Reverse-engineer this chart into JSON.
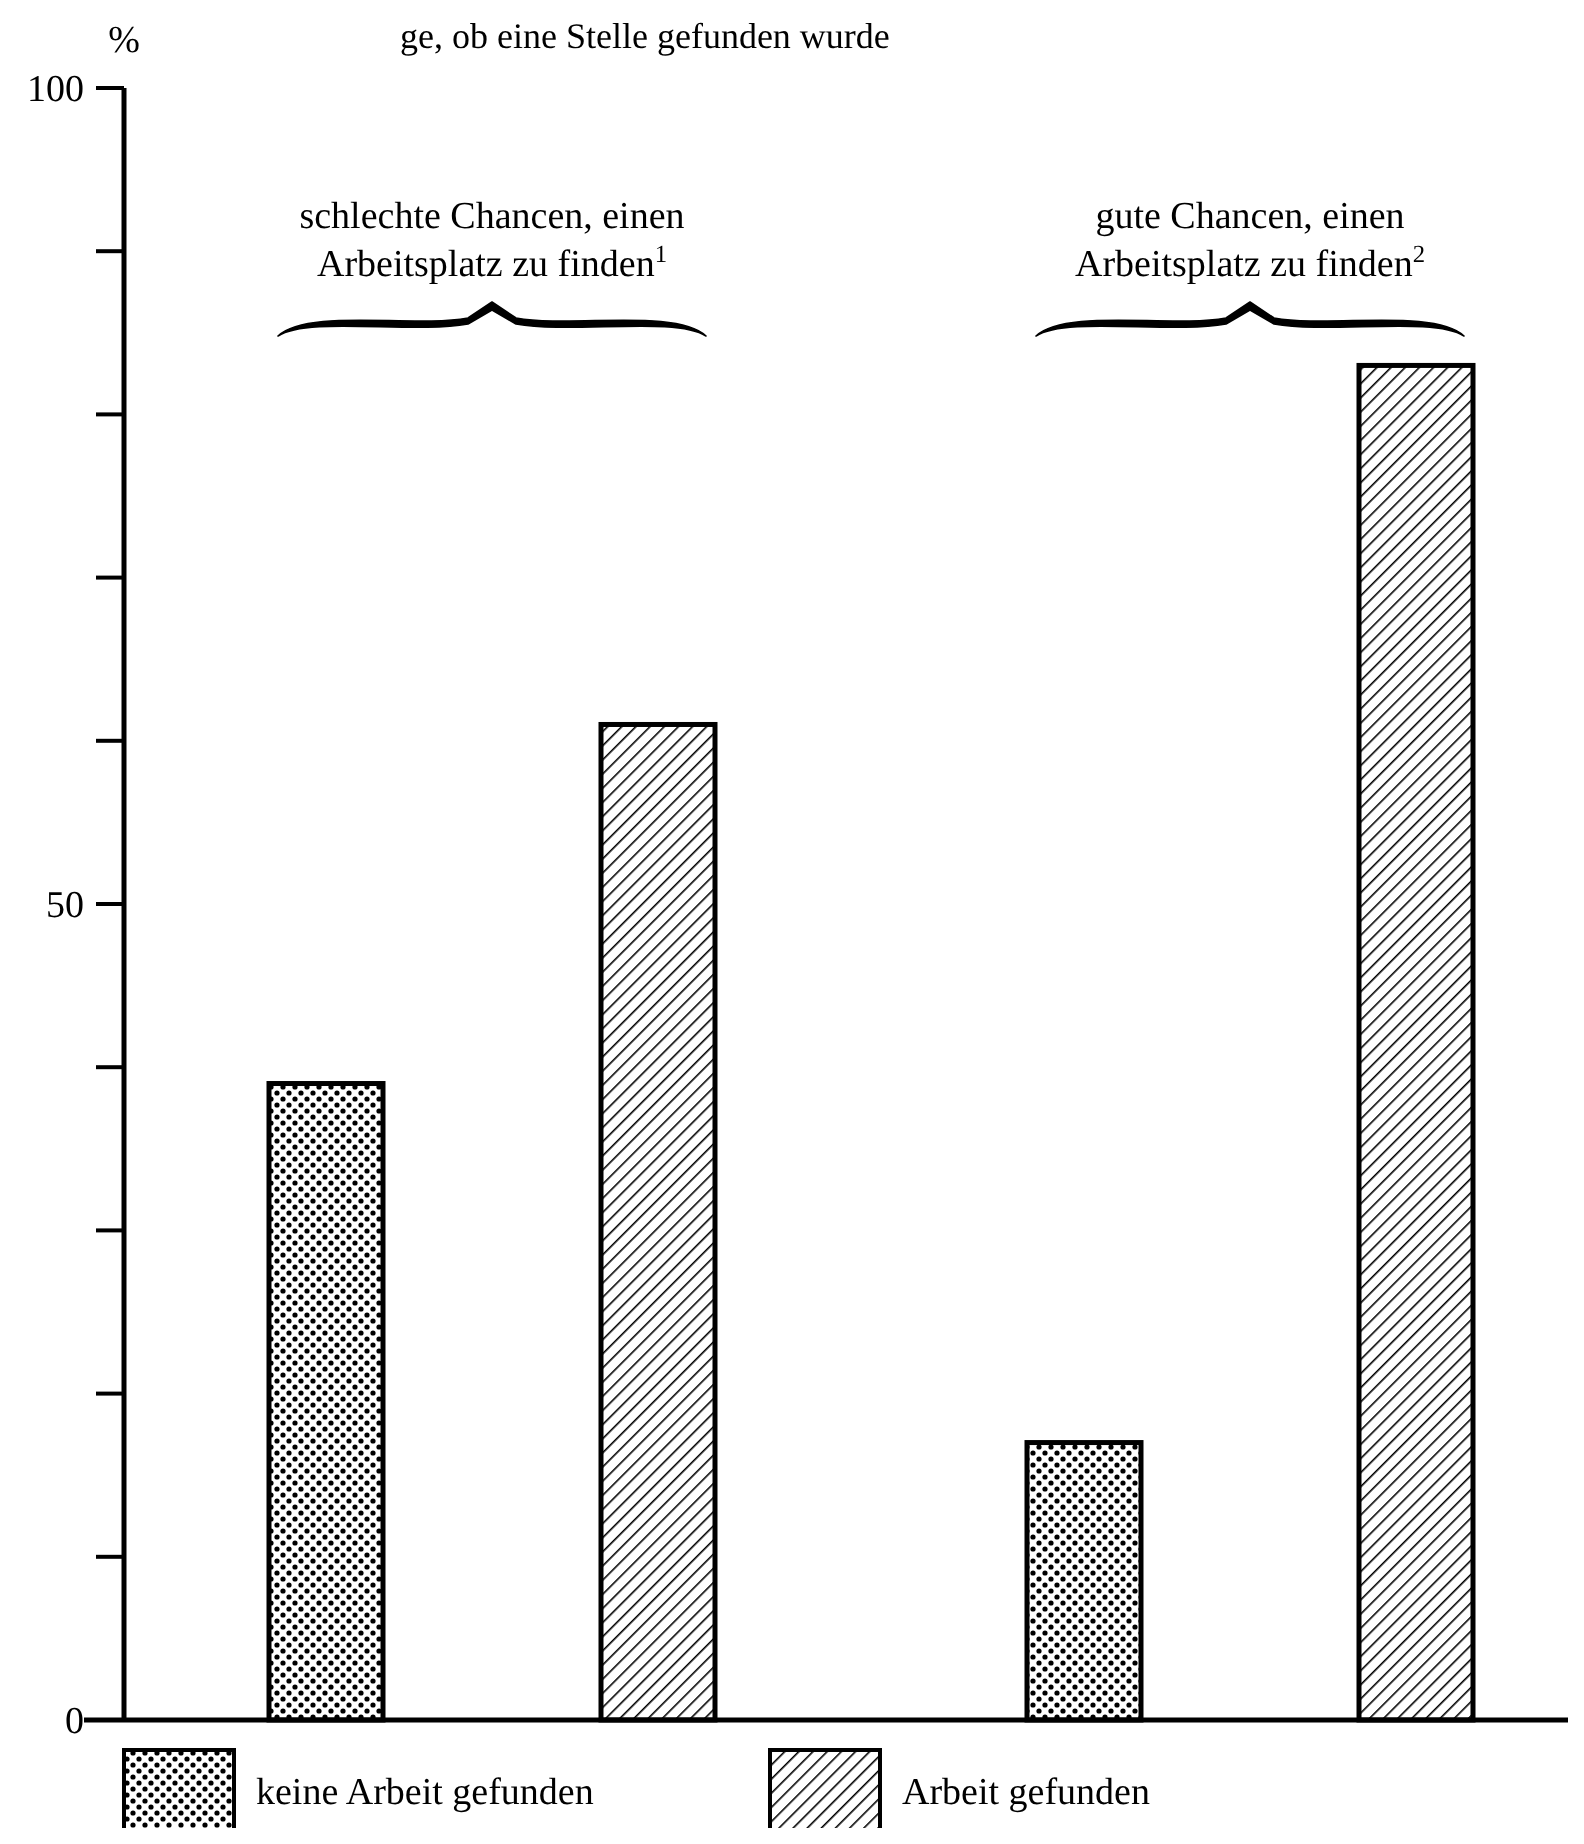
{
  "chart_data": {
    "type": "bar",
    "title": "ge, ob eine Stelle gefunden wurde",
    "ylabel": "%",
    "categories": [
      "schlechte Chancen, einen Arbeitsplatz zu finden$^{1}$",
      "gute Chancen, einen Arbeitsplatz zu finden$^{2}$"
    ],
    "series": [
      {
        "name": "keine Arbeit gefunden",
        "color": "#000000",
        "values": [
          39,
          17
        ]
      },
      {
        "name": "Arbeit gefunden",
        "color": "#000000",
        "values": [
          61,
          83
        ]
      }
    ],
    "ylim": [
      0,
      100
    ],
    "yticks": [
      0,
      {
        "value": 10,
        "label": null
      },
      {
        "value": 20,
        "label": null
      },
      {
        "value": 30,
        "label": null
      },
      {
        "value": 40,
        "label": null
      },
      50,
      {
        "value": 60,
        "label": null
      },
      {
        "value": 70,
        "label": null
      },
      {
        "value": 80,
        "label": null
      },
      {
        "value": 90,
        "label": null
      },
      100
    ],
    "grid": false,
    "legend": "bottom"
  }
}
